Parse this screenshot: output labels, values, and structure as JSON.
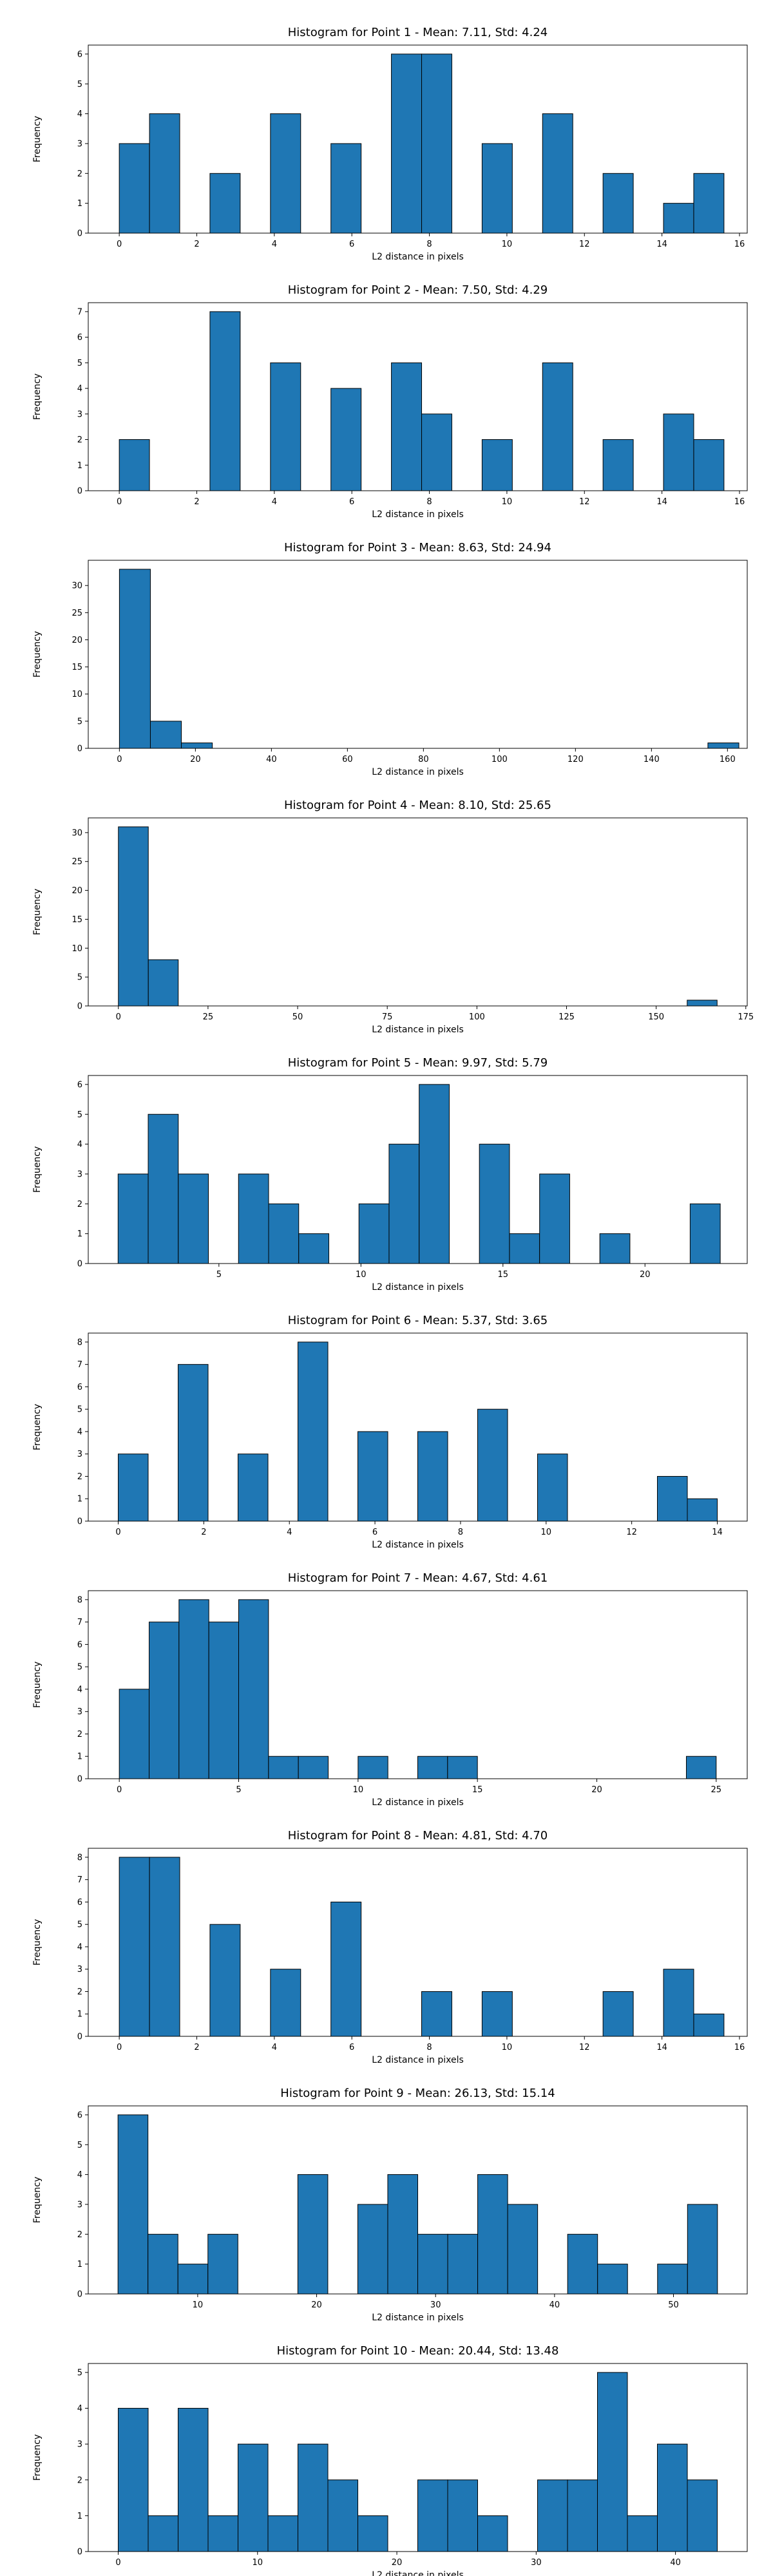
{
  "chart_data": [
    {
      "type": "bar",
      "title": "Histogram for Point 1 - Mean: 7.11, Std: 4.24",
      "xlabel": "L2 distance in pixels",
      "ylabel": "Frequency",
      "xlim": [
        -0.8,
        16.2
      ],
      "ylim": [
        0,
        6.3
      ],
      "xticks": [
        0,
        2,
        4,
        6,
        8,
        10,
        12,
        14,
        16
      ],
      "yticks": [
        0,
        1,
        2,
        3,
        4,
        5,
        6
      ],
      "bins": [
        0,
        0.78,
        1.56,
        2.34,
        3.12,
        3.9,
        4.68,
        5.46,
        6.24,
        7.02,
        7.8,
        8.58,
        9.36,
        10.14,
        10.92,
        11.7,
        12.48,
        13.26,
        14.04,
        14.82,
        15.6
      ],
      "counts": [
        3,
        4,
        0,
        2,
        0,
        4,
        0,
        3,
        0,
        6,
        6,
        0,
        3,
        0,
        4,
        0,
        2,
        0,
        1,
        2
      ]
    },
    {
      "type": "bar",
      "title": "Histogram for Point 2 - Mean: 7.50, Std: 4.29",
      "xlabel": "L2 distance in pixels",
      "ylabel": "Frequency",
      "xlim": [
        -0.8,
        16.2
      ],
      "ylim": [
        0,
        7.35
      ],
      "xticks": [
        0,
        2,
        4,
        6,
        8,
        10,
        12,
        14,
        16
      ],
      "yticks": [
        0,
        1,
        2,
        3,
        4,
        5,
        6,
        7
      ],
      "bins": [
        0,
        0.78,
        1.56,
        2.34,
        3.12,
        3.9,
        4.68,
        5.46,
        6.24,
        7.02,
        7.8,
        8.58,
        9.36,
        10.14,
        10.92,
        11.7,
        12.48,
        13.26,
        14.04,
        14.82,
        15.6
      ],
      "counts": [
        2,
        0,
        0,
        7,
        0,
        5,
        0,
        4,
        0,
        5,
        3,
        0,
        2,
        0,
        5,
        0,
        2,
        0,
        3,
        2
      ]
    },
    {
      "type": "bar",
      "title": "Histogram for Point 3 - Mean: 8.63, Std: 24.94",
      "xlabel": "L2 distance in pixels",
      "ylabel": "Frequency",
      "xlim": [
        -8.2,
        165.2
      ],
      "ylim": [
        0,
        34.65
      ],
      "xticks": [
        0,
        20,
        40,
        60,
        80,
        100,
        120,
        140,
        160
      ],
      "yticks": [
        0,
        5,
        10,
        15,
        20,
        25,
        30
      ],
      "bins": [
        0,
        8.15,
        16.3,
        24.45,
        32.6,
        40.75,
        48.9,
        57.05,
        65.2,
        73.35,
        81.5,
        89.65,
        97.8,
        105.95,
        114.1,
        122.25,
        130.4,
        138.55,
        146.7,
        154.85,
        163.0
      ],
      "counts": [
        33,
        5,
        1,
        0,
        0,
        0,
        0,
        0,
        0,
        0,
        0,
        0,
        0,
        0,
        0,
        0,
        0,
        0,
        0,
        1
      ]
    },
    {
      "type": "bar",
      "title": "Histogram for Point 4 - Mean: 8.10, Std: 25.65",
      "xlabel": "L2 distance in pixels",
      "ylabel": "Frequency",
      "xlim": [
        -8.4,
        175.4
      ],
      "ylim": [
        0,
        32.55
      ],
      "xticks": [
        0,
        25,
        50,
        75,
        100,
        125,
        150,
        175
      ],
      "yticks": [
        0,
        5,
        10,
        15,
        20,
        25,
        30
      ],
      "bins": [
        0,
        8.35,
        16.7,
        25.05,
        33.4,
        41.75,
        50.1,
        58.45,
        66.8,
        75.15,
        83.5,
        91.85,
        100.2,
        108.55,
        116.9,
        125.25,
        133.6,
        141.95,
        150.3,
        158.65,
        167.0
      ],
      "counts": [
        31,
        8,
        0,
        0,
        0,
        0,
        0,
        0,
        0,
        0,
        0,
        0,
        0,
        0,
        0,
        0,
        0,
        0,
        0,
        1
      ]
    },
    {
      "type": "bar",
      "title": "Histogram for Point 5 - Mean: 9.97, Std: 5.79",
      "xlabel": "L2 distance in pixels",
      "ylabel": "Frequency",
      "xlim": [
        0.4,
        23.6
      ],
      "ylim": [
        0,
        6.3
      ],
      "xticks": [
        5,
        10,
        15,
        20
      ],
      "yticks": [
        0,
        1,
        2,
        3,
        4,
        5,
        6
      ],
      "bins": [
        1.45,
        2.51,
        3.57,
        4.63,
        5.69,
        6.75,
        7.81,
        8.87,
        9.93,
        10.99,
        12.05,
        13.11,
        14.17,
        15.23,
        16.29,
        17.35,
        18.41,
        19.47,
        20.53,
        21.59,
        22.65
      ],
      "counts": [
        3,
        5,
        3,
        0,
        3,
        2,
        1,
        0,
        2,
        4,
        6,
        0,
        4,
        1,
        3,
        0,
        1,
        0,
        0,
        2
      ]
    },
    {
      "type": "bar",
      "title": "Histogram for Point 6 - Mean: 5.37, Std: 3.65",
      "xlabel": "L2 distance in pixels",
      "ylabel": "Frequency",
      "xlim": [
        -0.7,
        14.7
      ],
      "ylim": [
        0,
        8.4
      ],
      "xticks": [
        0,
        2,
        4,
        6,
        8,
        10,
        12,
        14
      ],
      "yticks": [
        0,
        1,
        2,
        3,
        4,
        5,
        6,
        7,
        8
      ],
      "bins": [
        0,
        0.7,
        1.4,
        2.1,
        2.8,
        3.5,
        4.2,
        4.9,
        5.6,
        6.3,
        7.0,
        7.7,
        8.4,
        9.1,
        9.8,
        10.5,
        11.2,
        11.9,
        12.6,
        13.3,
        14.0
      ],
      "counts": [
        3,
        0,
        7,
        0,
        3,
        0,
        8,
        0,
        4,
        0,
        4,
        0,
        5,
        0,
        3,
        0,
        0,
        0,
        2,
        1
      ]
    },
    {
      "type": "bar",
      "title": "Histogram for Point 7 - Mean: 4.67, Std: 4.61",
      "xlabel": "L2 distance in pixels",
      "ylabel": "Frequency",
      "xlim": [
        -1.3,
        26.3
      ],
      "ylim": [
        0,
        8.4
      ],
      "xticks": [
        0,
        5,
        10,
        15,
        20,
        25
      ],
      "yticks": [
        0,
        1,
        2,
        3,
        4,
        5,
        6,
        7,
        8
      ],
      "bins": [
        0,
        1.25,
        2.5,
        3.75,
        5.0,
        6.25,
        7.5,
        8.75,
        10.0,
        11.25,
        12.5,
        13.75,
        15.0,
        16.25,
        17.5,
        18.75,
        20.0,
        21.25,
        22.5,
        23.75,
        25.0
      ],
      "counts": [
        4,
        7,
        8,
        7,
        8,
        1,
        1,
        0,
        1,
        0,
        1,
        1,
        0,
        0,
        0,
        0,
        0,
        0,
        0,
        1
      ]
    },
    {
      "type": "bar",
      "title": "Histogram for Point 8 - Mean: 4.81, Std: 4.70",
      "xlabel": "L2 distance in pixels",
      "ylabel": "Frequency",
      "xlim": [
        -0.8,
        16.2
      ],
      "ylim": [
        0,
        8.4
      ],
      "xticks": [
        0,
        2,
        4,
        6,
        8,
        10,
        12,
        14,
        16
      ],
      "yticks": [
        0,
        1,
        2,
        3,
        4,
        5,
        6,
        7,
        8
      ],
      "bins": [
        0,
        0.78,
        1.56,
        2.34,
        3.12,
        3.9,
        4.68,
        5.46,
        6.24,
        7.02,
        7.8,
        8.58,
        9.36,
        10.14,
        10.92,
        11.7,
        12.48,
        13.26,
        14.04,
        14.82,
        15.6
      ],
      "counts": [
        8,
        8,
        0,
        5,
        0,
        3,
        0,
        6,
        0,
        0,
        2,
        0,
        2,
        0,
        0,
        0,
        2,
        0,
        3,
        1
      ]
    },
    {
      "type": "bar",
      "title": "Histogram for Point 9 - Mean: 26.13, Std: 15.14",
      "xlabel": "L2 distance in pixels",
      "ylabel": "Frequency",
      "xlim": [
        0.8,
        56.2
      ],
      "ylim": [
        0,
        6.3
      ],
      "xticks": [
        10,
        20,
        30,
        40,
        50
      ],
      "yticks": [
        0,
        1,
        2,
        3,
        4,
        5,
        6
      ],
      "bins": [
        3.3,
        5.82,
        8.34,
        10.86,
        13.38,
        15.9,
        18.42,
        20.94,
        23.46,
        25.98,
        28.5,
        31.02,
        33.54,
        36.06,
        38.58,
        41.1,
        43.62,
        46.14,
        48.66,
        51.18,
        53.7
      ],
      "counts": [
        6,
        2,
        1,
        2,
        0,
        0,
        4,
        0,
        3,
        4,
        2,
        2,
        4,
        3,
        0,
        2,
        1,
        0,
        1,
        3
      ]
    },
    {
      "type": "bar",
      "title": "Histogram for Point 10 - Mean: 20.44, Std: 13.48",
      "xlabel": "L2 distance in pixels",
      "ylabel": "Frequency",
      "xlim": [
        -2.15,
        45.15
      ],
      "ylim": [
        0,
        5.25
      ],
      "xticks": [
        0,
        10,
        20,
        30,
        40
      ],
      "yticks": [
        0,
        1,
        2,
        3,
        4,
        5
      ],
      "bins": [
        0,
        2.15,
        4.3,
        6.45,
        8.6,
        10.75,
        12.9,
        15.05,
        17.2,
        19.35,
        21.5,
        23.65,
        25.8,
        27.95,
        30.1,
        32.25,
        34.4,
        36.55,
        38.7,
        40.85,
        43.0
      ],
      "counts": [
        4,
        1,
        4,
        1,
        3,
        1,
        3,
        2,
        1,
        0,
        2,
        2,
        1,
        0,
        2,
        2,
        5,
        1,
        3,
        2
      ]
    }
  ]
}
